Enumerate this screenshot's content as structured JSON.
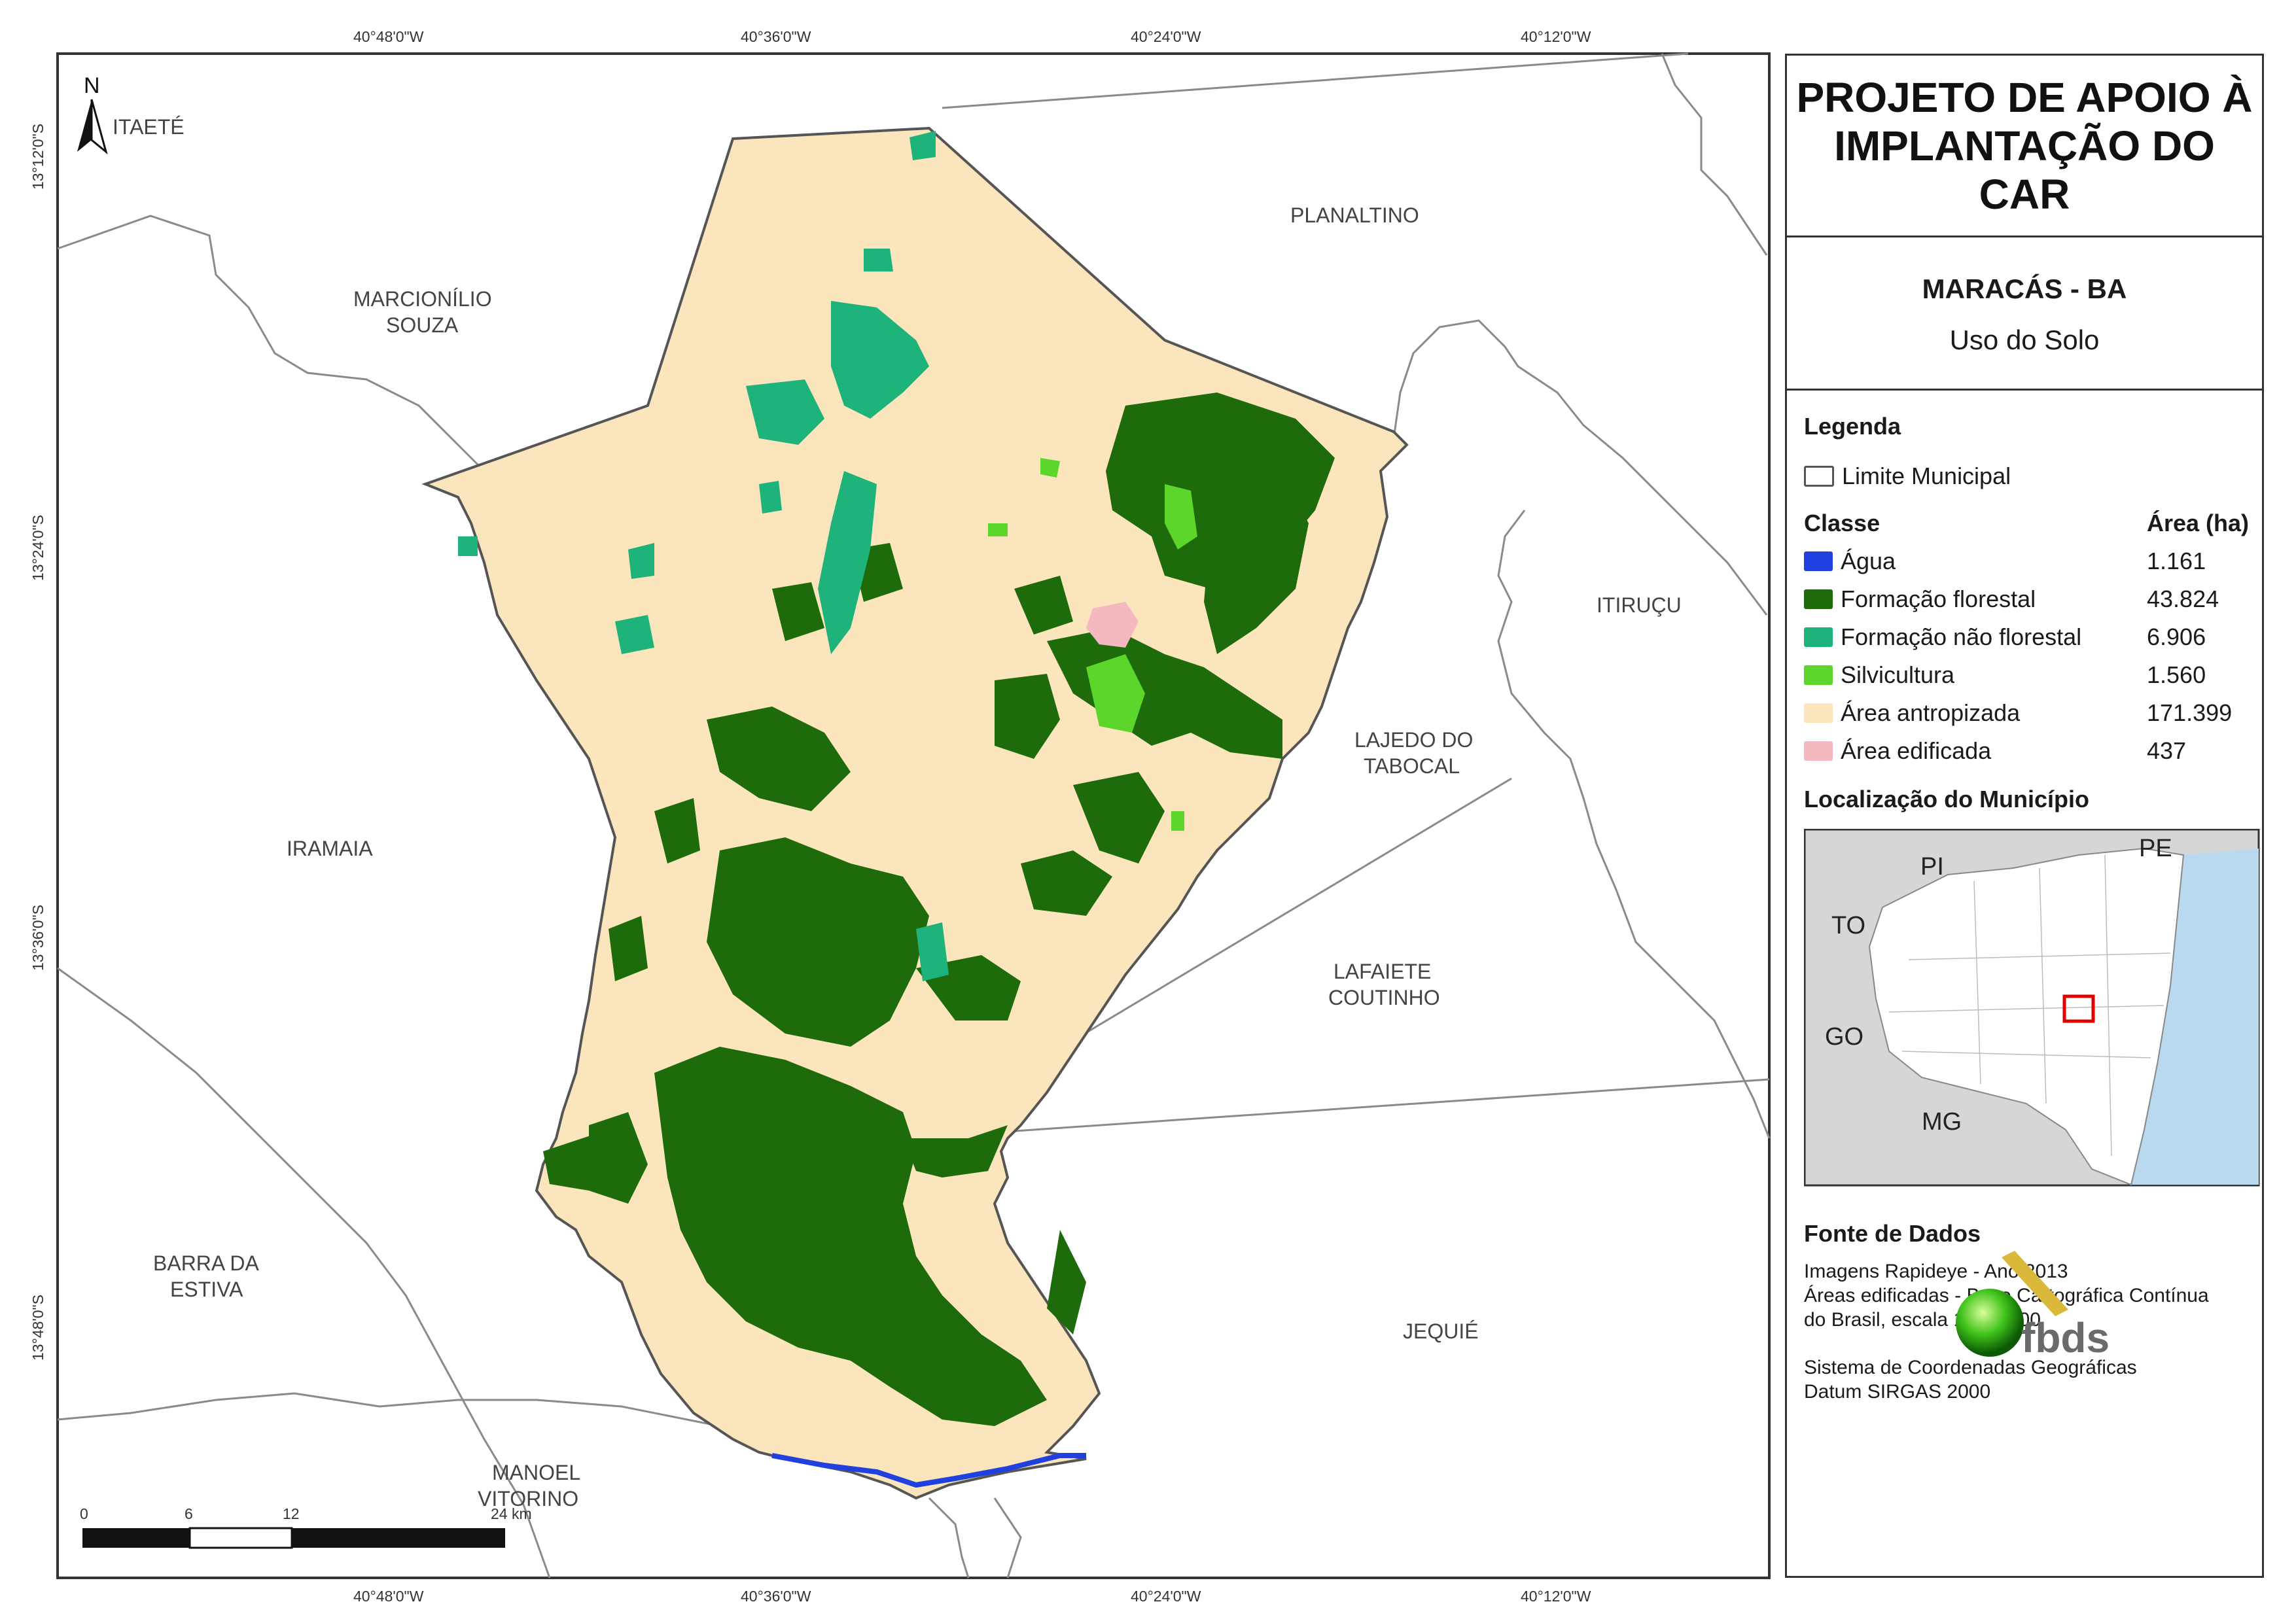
{
  "title_line1": "PROJETO DE APOIO À",
  "title_line2": "IMPLANTAÇÃO DO CAR",
  "municipality_title": "MARACÁS - BA",
  "map_theme": "Uso do Solo",
  "legend": {
    "heading": "Legenda",
    "boundary_label": "Limite Municipal",
    "class_heading": "Classe",
    "area_heading": "Área (ha)",
    "classes": [
      {
        "name": "Água",
        "area": "1.161",
        "color": "#2040e0"
      },
      {
        "name": "Formação florestal",
        "area": "43.824",
        "color": "#1e6b0c"
      },
      {
        "name": "Formação não florestal",
        "area": "6.906",
        "color": "#1db37a"
      },
      {
        "name": "Silvicultura",
        "area": "1.560",
        "color": "#5cd62a"
      },
      {
        "name": "Área antropizada",
        "area": "171.399",
        "color": "#fbe5bd"
      },
      {
        "name": "Área edificada",
        "area": "437",
        "color": "#f6b8c0"
      }
    ]
  },
  "location": {
    "heading": "Localização do Município",
    "states": [
      "PI",
      "PE",
      "TO",
      "GO",
      "MG"
    ]
  },
  "sources": {
    "heading": "Fonte de Dados",
    "line1": "Imagens Rapideye - Ano 2013",
    "line2": "Áreas edificadas - Base Cartográfica Contínua",
    "line3": "do Brasil, escala 1:250.000",
    "line4": "Sistema de Coordenadas Geográficas",
    "line5": "Datum SIRGAS 2000"
  },
  "logo_text": "fbds",
  "north": "N",
  "top_coords": [
    "40°48'0\"W",
    "40°36'0\"W",
    "40°24'0\"W",
    "40°12'0\"W"
  ],
  "bottom_coords": [
    "40°48'0\"W",
    "40°36'0\"W",
    "40°24'0\"W",
    "40°12'0\"W"
  ],
  "left_coords": [
    "13°12'0\"S",
    "13°24'0\"S",
    "13°36'0\"S",
    "13°48'0\"S"
  ],
  "neighbors": {
    "itaete": "ITAETÉ",
    "planaltino": "PLANALTINO",
    "marcionilio1": "MARCIONÍLIO",
    "marcionilio2": "SOUZA",
    "itirucu": "ITIRUÇU",
    "lajedo1": "LAJEDO DO",
    "lajedo2": "TABOCAL",
    "iramaia": "IRAMAIA",
    "lafaiete1": "LAFAIETE",
    "lafaiete2": "COUTINHO",
    "barra1": "BARRA DA",
    "barra2": "ESTIVA",
    "jequie": "JEQUIÉ",
    "manoel1": "MANOEL",
    "manoel2": "VITORINO"
  },
  "scale": {
    "t0": "0",
    "t1": "6",
    "t2": "12",
    "t3": "24 km"
  }
}
